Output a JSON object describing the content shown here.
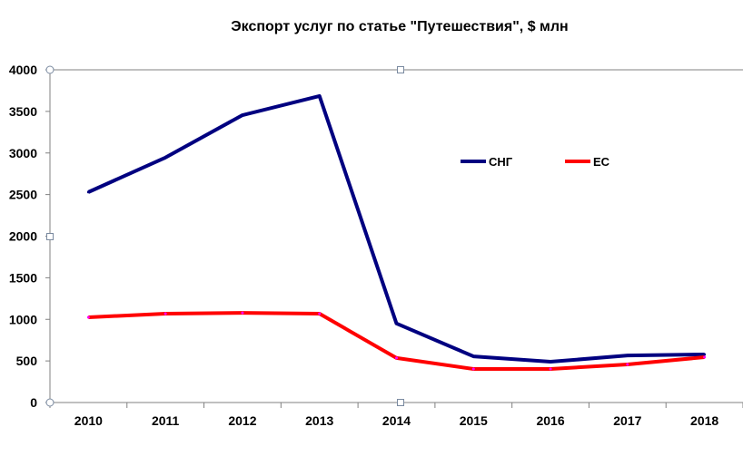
{
  "chart_data": {
    "type": "line",
    "title": "Экспорт услуг по статье \"Путешествия\", $ млн",
    "xlabel": "",
    "ylabel": "",
    "categories": [
      "2010",
      "2011",
      "2012",
      "2013",
      "2014",
      "2015",
      "2016",
      "2017",
      "2018"
    ],
    "ylim": [
      0,
      4000
    ],
    "yticks": [
      0,
      500,
      1000,
      1500,
      2000,
      2500,
      3000,
      3500,
      4000
    ],
    "grid": false,
    "legend": "inside-top-right",
    "series": [
      {
        "name": "СНГ",
        "color": "#000080",
        "values": [
          2530,
          2945,
          3455,
          3685,
          950,
          555,
          490,
          565,
          578
        ]
      },
      {
        "name": "ЕС",
        "color": "#FF0000",
        "values": [
          1025,
          1068,
          1078,
          1068,
          535,
          403,
          403,
          458,
          545
        ]
      }
    ]
  }
}
